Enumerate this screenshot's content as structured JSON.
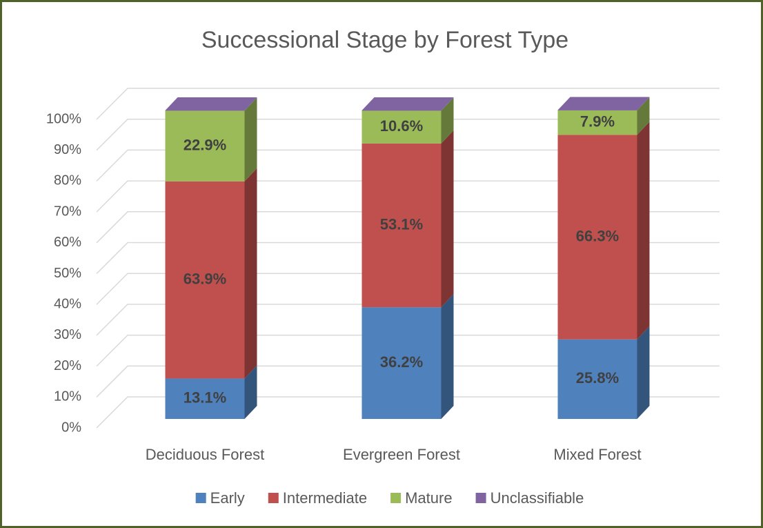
{
  "chart_data": {
    "type": "bar",
    "stacked": true,
    "title": "Successional Stage by Forest Type",
    "categories": [
      "Deciduous Forest",
      "Evergreen Forest",
      "Mixed Forest"
    ],
    "series": [
      {
        "name": "Early",
        "color": "#4f81bd",
        "values": [
          13.1,
          36.2,
          25.8
        ],
        "value_labels": [
          "13.1%",
          "36.2%",
          "25.8%"
        ]
      },
      {
        "name": "Intermediate",
        "color": "#c0504d",
        "values": [
          63.9,
          53.1,
          66.3
        ],
        "value_labels": [
          "63.9%",
          "53.1%",
          "66.3%"
        ]
      },
      {
        "name": "Mature",
        "color": "#9bbb59",
        "values": [
          22.9,
          10.6,
          7.9
        ],
        "value_labels": [
          "22.9%",
          "10.6%",
          "7.9%"
        ]
      },
      {
        "name": "Unclassifiable",
        "color": "#8064a2",
        "values": [
          0.1,
          0.1,
          0.1
        ]
      }
    ],
    "ylim": [
      0,
      100
    ],
    "yticks": [
      {
        "value": 0,
        "label": "0%"
      },
      {
        "value": 10,
        "label": "10%"
      },
      {
        "value": 20,
        "label": "20%"
      },
      {
        "value": 30,
        "label": "30%"
      },
      {
        "value": 40,
        "label": "40%"
      },
      {
        "value": 50,
        "label": "50%"
      },
      {
        "value": 60,
        "label": "60%"
      },
      {
        "value": 70,
        "label": "70%"
      },
      {
        "value": 80,
        "label": "80%"
      },
      {
        "value": 90,
        "label": "90%"
      },
      {
        "value": 100,
        "label": "100%"
      }
    ],
    "grid": true,
    "legend": "bottom"
  }
}
